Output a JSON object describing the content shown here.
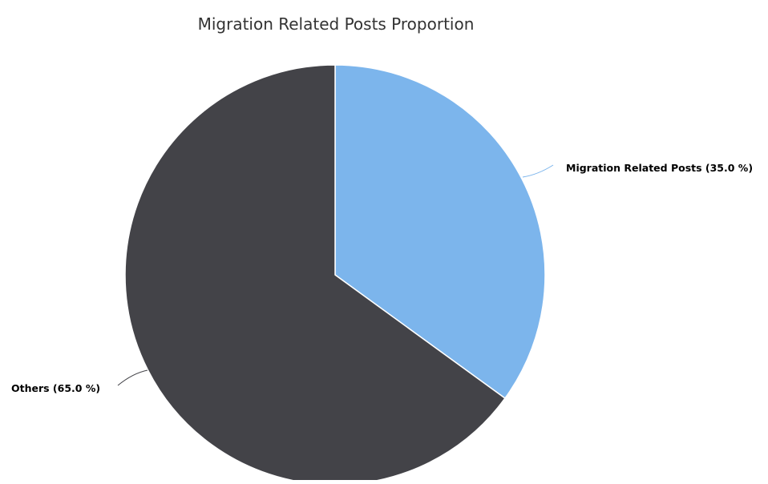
{
  "chart_data": {
    "type": "pie",
    "title": "Migration Related Posts Proportion",
    "slices": [
      {
        "name": "Migration Related Posts",
        "value": 35.0,
        "label": "Migration Related Posts (35.0 %)",
        "color": "#7cb5ec"
      },
      {
        "name": "Others",
        "value": 65.0,
        "label": "Others (65.0 %)",
        "color": "#434348"
      }
    ],
    "start_angle_deg": 0,
    "direction": "clockwise",
    "slice_border_color": "#ffffff",
    "legend": "none",
    "data_labels": "outside-with-connectors"
  }
}
